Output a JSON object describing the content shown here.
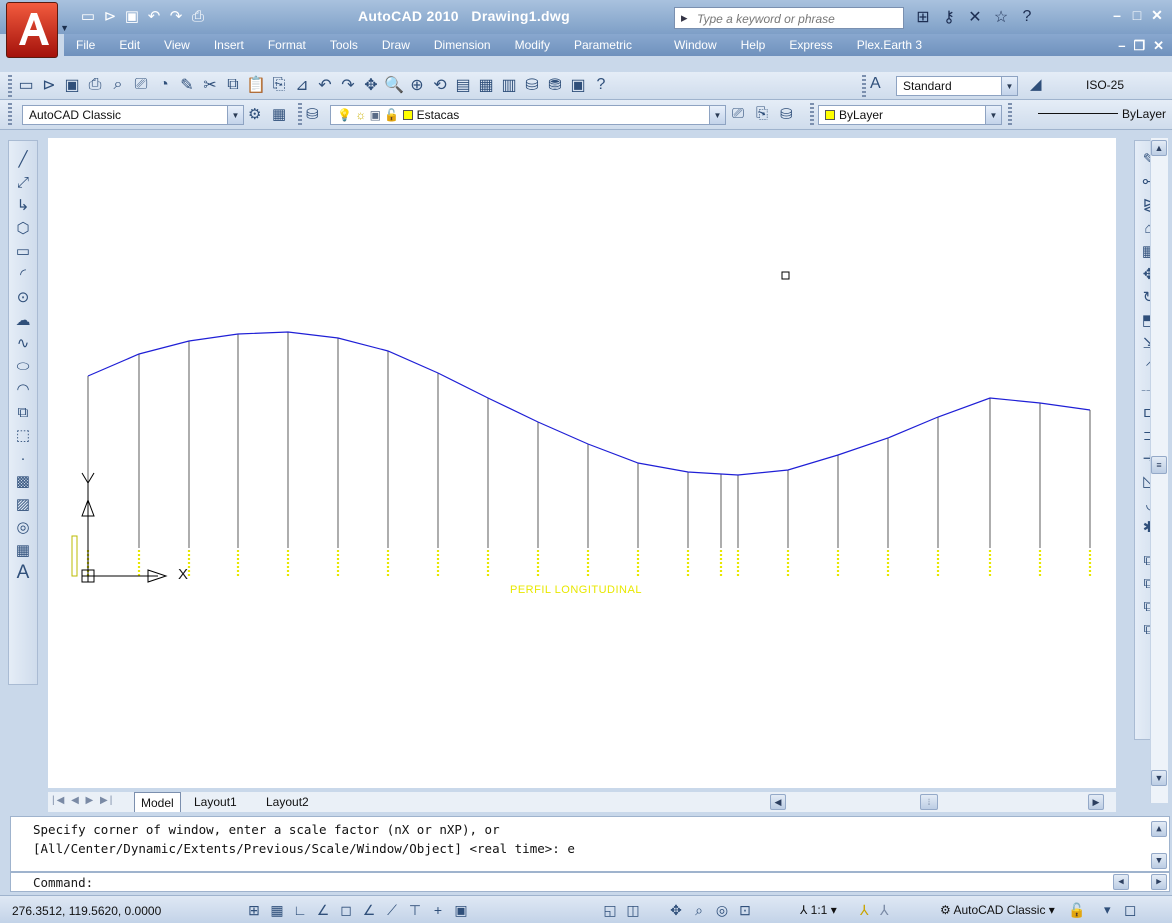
{
  "window": {
    "app_title": "AutoCAD 2010",
    "doc_title": "Drawing1.dwg",
    "search_placeholder": "Type a keyword or phrase"
  },
  "menu": [
    "File",
    "Edit",
    "View",
    "Insert",
    "Format",
    "Tools",
    "Draw",
    "Dimension",
    "Modify",
    "Parametric",
    "Window",
    "Help",
    "Express",
    "Plex.Earth 3"
  ],
  "toolbar": {
    "text_style": "Standard",
    "dim_style": "ISO-25",
    "workspace": "AutoCAD Classic",
    "layer": "Estacas",
    "color": "ByLayer",
    "linetype": "ByLayer"
  },
  "drawing": {
    "profile_label": "PERFIL LONGITUDINAL",
    "ucs_x": "X",
    "ucs_y": "Y",
    "profile_color": "#1f1fd6",
    "station_color": "#e8e800"
  },
  "tabs": [
    "Model",
    "Layout1",
    "Layout2"
  ],
  "command": {
    "history_1": "Specify corner of window, enter a scale factor (nX or nXP), or",
    "history_2": "[All/Center/Dynamic/Extents/Previous/Scale/Window/Object] <real time>: e",
    "prompt": "Command:"
  },
  "status": {
    "coordinates": "276.3512, 119.5620, 0.0000",
    "annotation_scale": "1:1",
    "workspace_label": "AutoCAD Classic"
  }
}
